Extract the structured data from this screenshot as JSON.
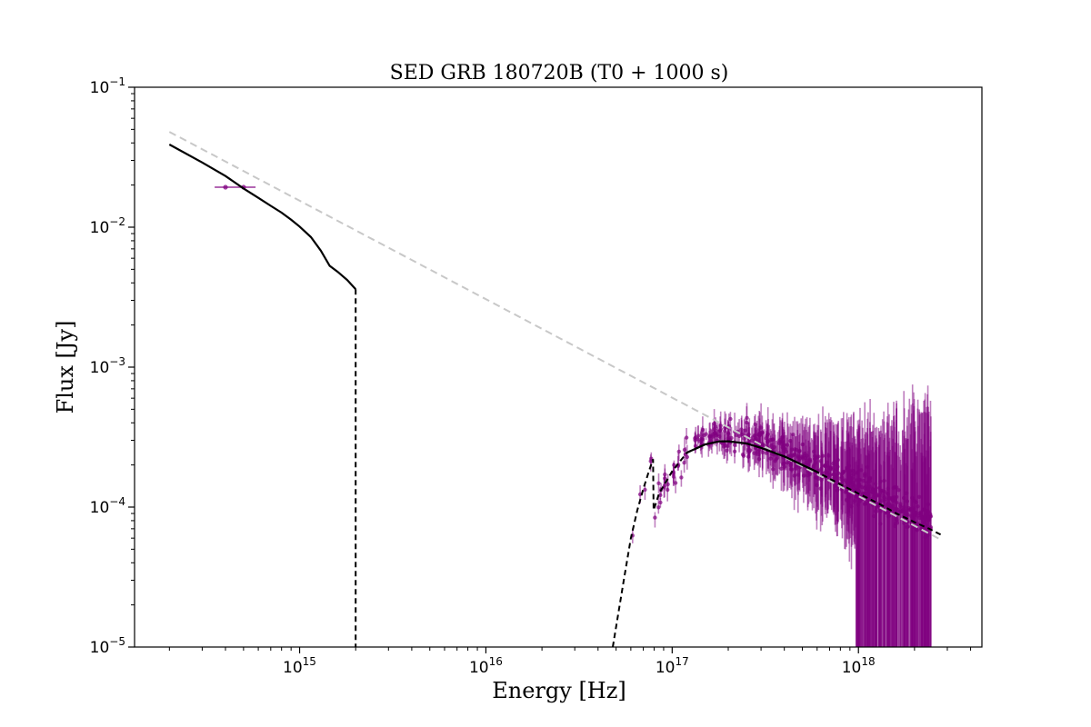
{
  "chart_data": {
    "type": "scatter",
    "title": "SED GRB 180720B (T0 + 1000 s)",
    "xlabel": "Energy [Hz]",
    "ylabel": "Flux [Jy]",
    "xscale": "log",
    "yscale": "log",
    "xlim": [
      130000000000000.0,
      4.6e+18
    ],
    "ylim": [
      1e-05,
      0.1
    ],
    "grid": false,
    "x_ticks": [
      {
        "value": 1000000000000000.0,
        "base": "10",
        "exp": "15"
      },
      {
        "value": 1e+16,
        "base": "10",
        "exp": "16"
      },
      {
        "value": 1e+17,
        "base": "10",
        "exp": "17"
      },
      {
        "value": 1e+18,
        "base": "10",
        "exp": "18"
      }
    ],
    "y_ticks": [
      {
        "value": 1e-05,
        "base": "10",
        "exp": "−5"
      },
      {
        "value": 0.0001,
        "base": "10",
        "exp": "−4"
      },
      {
        "value": 0.001,
        "base": "10",
        "exp": "−3"
      },
      {
        "value": 0.01,
        "base": "10",
        "exp": "−2"
      },
      {
        "value": 0.1,
        "base": "10",
        "exp": "−1"
      }
    ],
    "colors": {
      "data": "#800080",
      "model": "#000000",
      "powerlaw": "#c8c8c8"
    },
    "powerlaw_line": {
      "style": "dashed",
      "x": [
        200000000000000.0,
        2.8e+18
      ],
      "y": [
        0.048,
        5.8e-05
      ]
    },
    "optical_model": {
      "style": "solid",
      "x": [
        200000000000000.0,
        300000000000000.0,
        400000000000000.0,
        500000000000000.0,
        600000000000000.0,
        700000000000000.0,
        800000000000000.0,
        900000000000000.0,
        1000000000000000.0,
        1150000000000000.0,
        1300000000000000.0,
        1450000000000000.0,
        1600000000000000.0,
        1800000000000000.0,
        2000000000000000.0
      ],
      "y": [
        0.039,
        0.029,
        0.0232,
        0.0189,
        0.0162,
        0.0142,
        0.0127,
        0.0113,
        0.0101,
        0.0085,
        0.0068,
        0.0053,
        0.0048,
        0.0042,
        0.0036
      ]
    },
    "optical_dropoff": {
      "style": "dashed",
      "x": [
        2000000000000000.0,
        2000000000000000.0
      ],
      "y": [
        0.0036,
        1e-05
      ]
    },
    "xray_model": {
      "style": "solid_and_dashed",
      "x": [
        4.8e+16,
        5.5e+16,
        6e+16,
        6.5e+16,
        7e+16,
        7.5e+16,
        7.9e+16,
        7.95e+16,
        8.5e+16,
        1e+17,
        1.2e+17,
        1.5e+17,
        1.8e+17,
        2e+17,
        2.5e+17,
        3e+17,
        4e+17,
        5e+17,
        6e+17,
        8e+17,
        1e+18,
        1.3e+18,
        1.6e+18,
        2e+18,
        2.4e+18,
        2.8e+18
      ],
      "y": [
        1e-05,
        3e-05,
        6e-05,
        9.5e-05,
        0.000135,
        0.00018,
        0.00022,
        9.5e-05,
        0.000125,
        0.00018,
        0.000245,
        0.00028,
        0.000295,
        0.000295,
        0.000285,
        0.000265,
        0.00023,
        0.0002,
        0.000178,
        0.000145,
        0.000125,
        0.000105,
        9e-05,
        7.8e-05,
        7e-05,
        6.3e-05
      ]
    },
    "optical_points": [
      {
        "x": 400000000000000.0,
        "y": 0.0193,
        "xerr_low": 350000000000000.0,
        "xerr_high": 450000000000000.0,
        "yerr": 0
      },
      {
        "x": 500000000000000.0,
        "y": 0.0193,
        "xerr_low": 450000000000000.0,
        "xerr_high": 580000000000000.0,
        "yerr": 0
      }
    ],
    "xray_points": {
      "x_min": 6e+16,
      "x_max": 2.45e+18,
      "count": 620,
      "note_shape": "follows xray_model with scatter growing toward high energy"
    }
  }
}
